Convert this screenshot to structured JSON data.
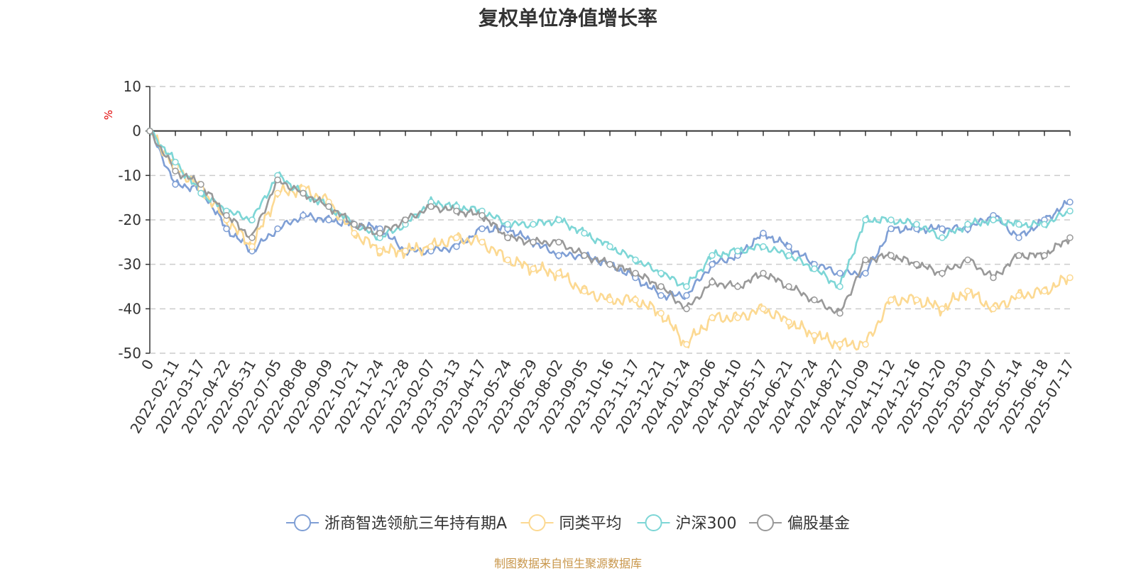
{
  "page": {
    "title": "复权单位净值增长率",
    "source": "制图数据来自恒生聚源数据库"
  },
  "chart_data": {
    "type": "line",
    "title": "复权单位净值增长率",
    "ylabel": "%",
    "ylim": [
      -50,
      10
    ],
    "yticks": [
      10,
      0,
      -10,
      -20,
      -30,
      -40,
      -50
    ],
    "grid": true,
    "legend_position": "bottom",
    "x_tick_labels": [
      "0",
      "2022-02-11",
      "2022-03-17",
      "2022-04-22",
      "2022-05-31",
      "2022-07-05",
      "2022-08-08",
      "2022-09-09",
      "2022-10-21",
      "2022-11-24",
      "2022-12-28",
      "2023-02-07",
      "2023-03-13",
      "2023-04-17",
      "2023-05-24",
      "2023-06-29",
      "2023-08-02",
      "2023-09-05",
      "2023-10-16",
      "2023-11-17",
      "2023-12-21",
      "2024-01-24",
      "2024-03-06",
      "2024-04-10",
      "2024-05-17",
      "2024-06-21",
      "2024-07-24",
      "2024-08-27",
      "2024-10-09",
      "2024-11-12",
      "2024-12-16",
      "2025-01-20",
      "2025-03-03",
      "2025-04-07",
      "2025-05-14",
      "2025-06-18",
      "2025-07-17"
    ],
    "series": [
      {
        "name": "浙商智选领航三年持有期A",
        "color": "#7f9fd5",
        "values": [
          0,
          -12,
          -13,
          -22,
          -27,
          -22,
          -19,
          -20,
          -21,
          -22,
          -27,
          -27,
          -26,
          -22,
          -22,
          -25,
          -28,
          -28,
          -30,
          -33,
          -37,
          -37,
          -30,
          -28,
          -23,
          -26,
          -30,
          -32,
          -32,
          -22,
          -22,
          -22,
          -22,
          -19,
          -24,
          -20,
          -16
        ]
      },
      {
        "name": "同类平均",
        "color": "#fcd992",
        "values": [
          0,
          -8,
          -13,
          -20,
          -26,
          -14,
          -13,
          -16,
          -23,
          -27,
          -27,
          -26,
          -24,
          -25,
          -29,
          -31,
          -32,
          -36,
          -38,
          -38,
          -41,
          -48,
          -42,
          -42,
          -40,
          -43,
          -46,
          -48,
          -48,
          -38,
          -38,
          -40,
          -36,
          -40,
          -37,
          -36,
          -33
        ]
      },
      {
        "name": "沪深300",
        "color": "#7dd6d6",
        "values": [
          0,
          -7,
          -14,
          -18,
          -20,
          -10,
          -14,
          -17,
          -21,
          -24,
          -21,
          -16,
          -17,
          -18,
          -21,
          -21,
          -20,
          -23,
          -26,
          -29,
          -32,
          -35,
          -28,
          -27,
          -26,
          -28,
          -31,
          -35,
          -20,
          -20,
          -21,
          -24,
          -21,
          -20,
          -21,
          -21,
          -18
        ]
      },
      {
        "name": "偏股基金",
        "color": "#999999",
        "values": [
          0,
          -9,
          -12,
          -19,
          -24,
          -11,
          -14,
          -17,
          -21,
          -23,
          -20,
          -17,
          -18,
          -19,
          -24,
          -25,
          -25,
          -28,
          -30,
          -32,
          -35,
          -40,
          -34,
          -35,
          -32,
          -35,
          -38,
          -41,
          -29,
          -28,
          -30,
          -32,
          -29,
          -33,
          -28,
          -28,
          -24
        ]
      }
    ]
  }
}
